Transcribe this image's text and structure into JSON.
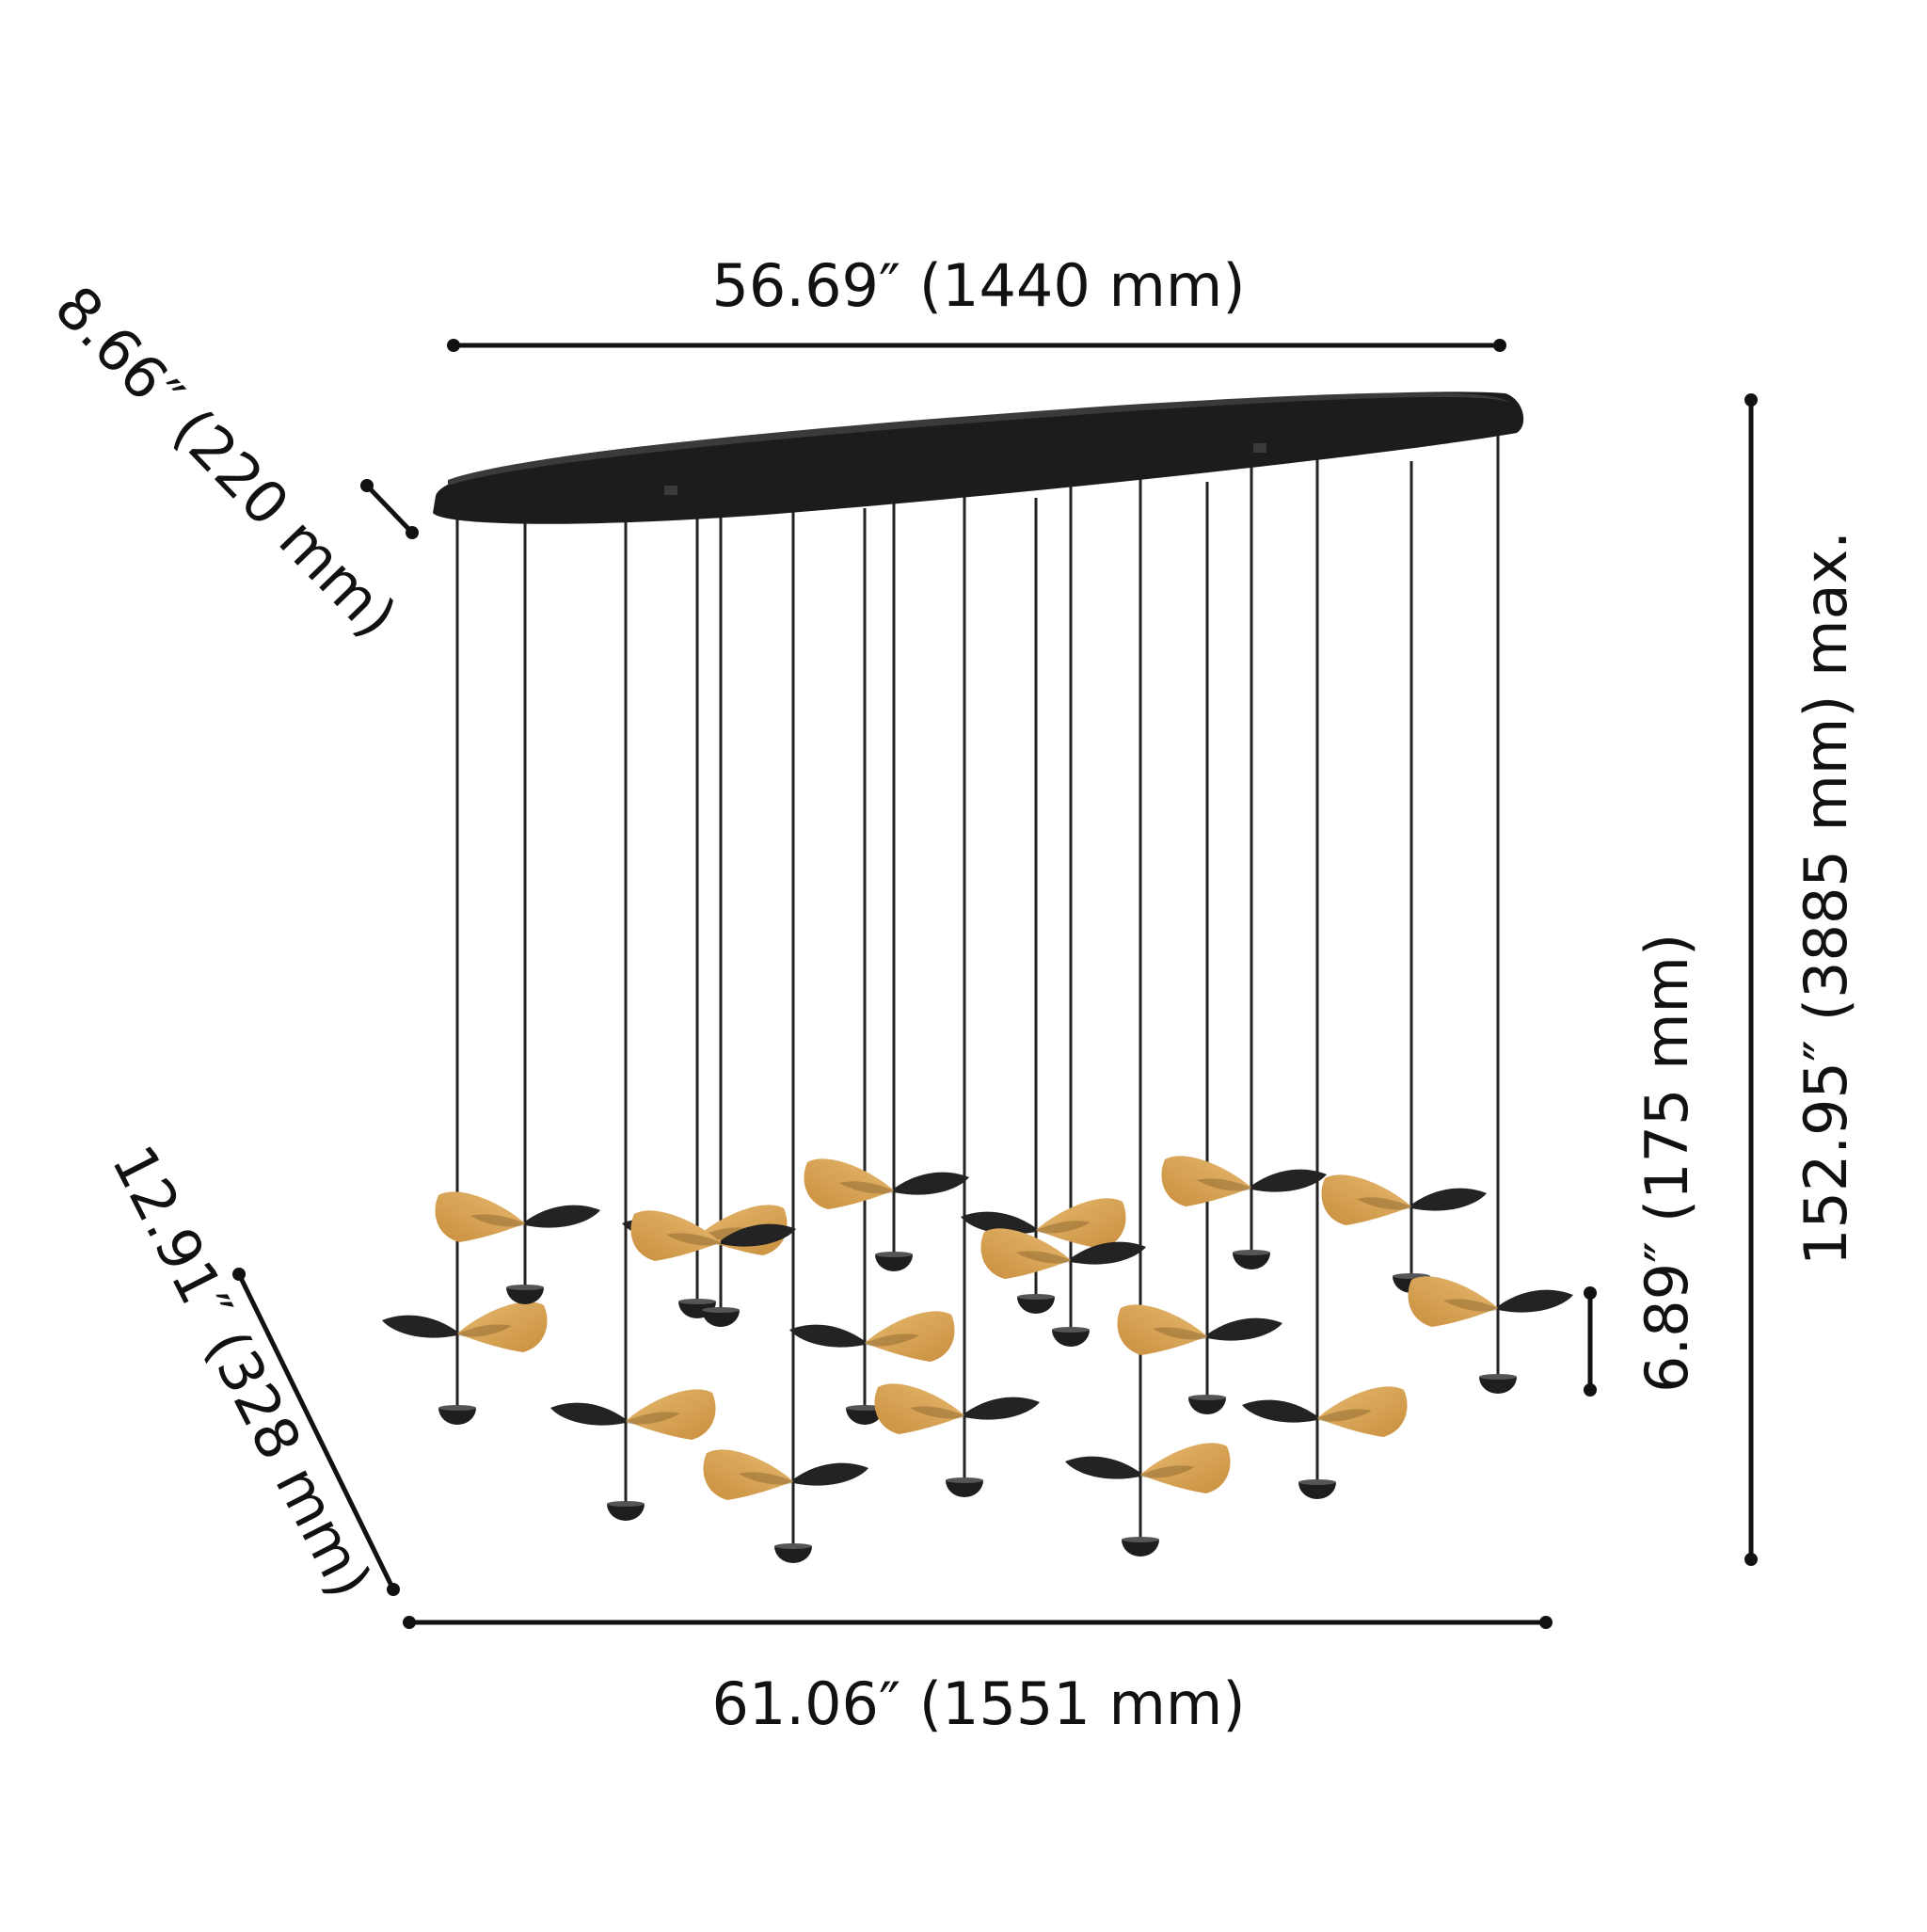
{
  "dimensions": {
    "canopy_width": "56.69″ (1440 mm)",
    "canopy_depth": "8.66″ (220 mm)",
    "total_height": "152.95″ (3885 mm) max.",
    "leaf_height": "6.89″ (175 mm)",
    "overall_depth": "12.91″ (328 mm)",
    "overall_width": "61.06″ (1551 mm)"
  },
  "colors": {
    "ink": "#111111",
    "canopy": "#1c1c1c",
    "leaf_gold": "#d8a55a",
    "leaf_dark": "#232323"
  }
}
